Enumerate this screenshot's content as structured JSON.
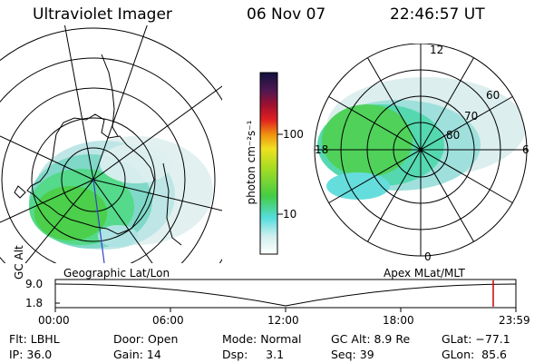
{
  "header": {
    "instrument": "Ultraviolet Imager",
    "date": "06 Nov 07",
    "time": "22:46:57 UT"
  },
  "left_map": {
    "label": "Geographic Lat/Lon"
  },
  "right_map": {
    "label": "Apex MLat/MLT",
    "mlt_labels": {
      "top": "12",
      "left": "18",
      "right": "6",
      "bottom": "0"
    },
    "lat_labels": [
      "80",
      "70",
      "60"
    ]
  },
  "colorbar": {
    "unit_label": "photon cm⁻²s⁻¹",
    "ticks": [
      "100",
      "10"
    ]
  },
  "altitude_plot": {
    "ylabel": "GC Alt",
    "y_ticks": [
      "9.0",
      "1.8"
    ],
    "x_ticks": [
      "00:00",
      "06:00",
      "12:00",
      "18:00",
      "23:59"
    ],
    "marker_color": "#cc0000"
  },
  "info": {
    "flt": "Flt: LBHL",
    "door": "Door: Open",
    "mode": "Mode: Normal",
    "gc_alt": "GC Alt: 8.9 Re",
    "glat": "GLat: −77.1",
    "ip": "IP: 36.0",
    "gain": "Gain: 14",
    "dsp": "Dsp:     3.1",
    "seq": "Seq: 39",
    "glon": "GLon:  85.6"
  }
}
